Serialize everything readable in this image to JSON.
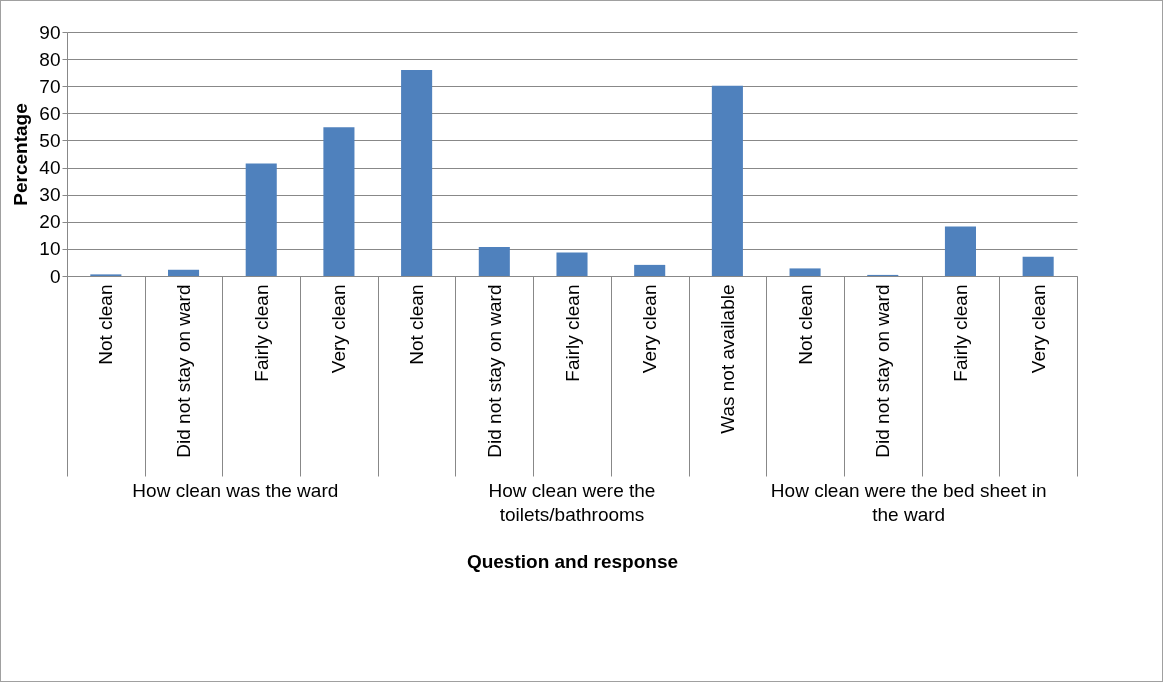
{
  "chart_data": {
    "type": "bar",
    "xlabel": "Question and response",
    "ylabel": "Percentage",
    "categories": [
      "Not clean",
      "Did not stay on ward",
      "Fairly clean",
      "Very clean",
      "Not clean",
      "Did not stay on ward",
      "Fairly clean",
      "Very clean",
      "Was not available",
      "Not clean",
      "Did not stay on ward",
      "Fairly clean",
      "Very clean"
    ],
    "values": [
      0.6,
      2.3,
      41.5,
      54.9,
      76.0,
      10.7,
      8.7,
      4.1,
      70.2,
      2.8,
      0.4,
      18.3,
      7.1
    ],
    "color": "#4f81bd",
    "ylim": [
      0,
      90
    ],
    "yticks": [
      0,
      10,
      20,
      30,
      40,
      50,
      60,
      70,
      80,
      90
    ],
    "grid": "y",
    "annotations": [
      "How clean was the ward",
      "How clean were the toilets/bathrooms",
      "How clean were the bed sheet in the ward"
    ]
  }
}
